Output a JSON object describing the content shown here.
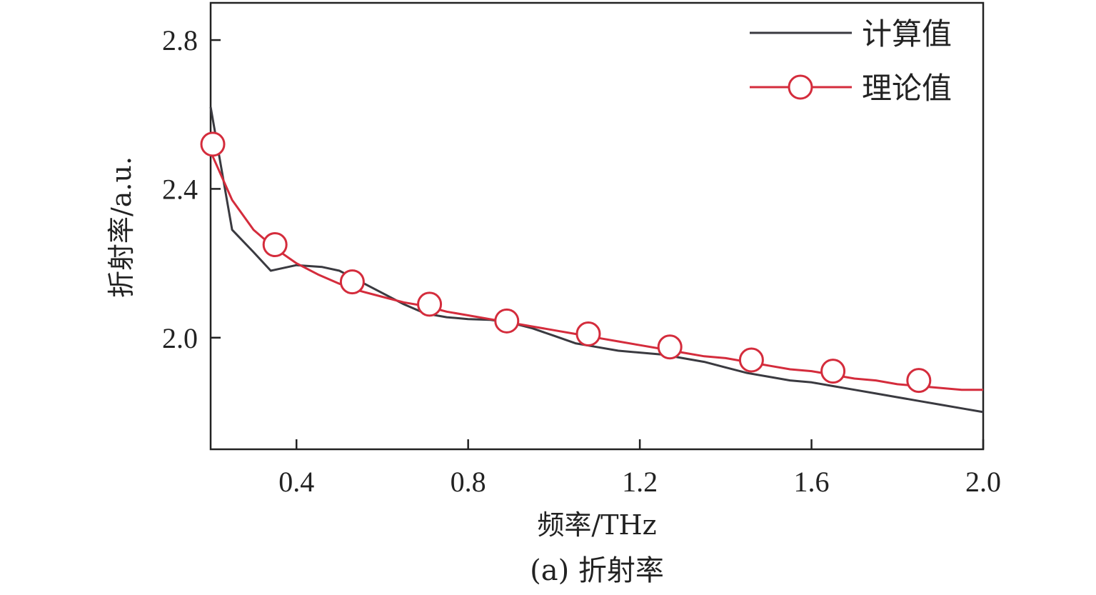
{
  "chart_data": {
    "type": "line",
    "caption": "(a) 折射率",
    "xlabel": "频率/THz",
    "ylabel": "折射率/a.u.",
    "xlim": [
      0.2,
      2.0
    ],
    "ylim": [
      1.7,
      2.9
    ],
    "xticks": [
      0.4,
      0.8,
      1.2,
      1.6,
      2.0
    ],
    "xtick_labels": [
      "0.4",
      "0.8",
      "1.2",
      "1.6",
      "2.0"
    ],
    "yticks": [
      2.0,
      2.4,
      2.8
    ],
    "ytick_labels": [
      "2.0",
      "2.4",
      "2.8"
    ],
    "legend_position": "top-right",
    "grid": false,
    "series": [
      {
        "name": "计算值",
        "color": "#3a3a40",
        "marker": "none",
        "x": [
          0.2,
          0.25,
          0.3,
          0.34,
          0.4,
          0.46,
          0.5,
          0.55,
          0.6,
          0.65,
          0.7,
          0.75,
          0.8,
          0.85,
          0.9,
          0.95,
          1.0,
          1.05,
          1.1,
          1.15,
          1.2,
          1.25,
          1.3,
          1.35,
          1.4,
          1.45,
          1.5,
          1.55,
          1.6,
          1.65,
          1.7,
          1.75,
          1.8,
          1.85,
          1.9,
          1.95,
          2.0
        ],
        "values": [
          2.62,
          2.29,
          2.23,
          2.18,
          2.195,
          2.19,
          2.18,
          2.15,
          2.12,
          2.09,
          2.065,
          2.055,
          2.05,
          2.048,
          2.04,
          2.025,
          2.005,
          1.985,
          1.975,
          1.965,
          1.96,
          1.955,
          1.945,
          1.935,
          1.92,
          1.905,
          1.895,
          1.885,
          1.88,
          1.87,
          1.86,
          1.85,
          1.84,
          1.83,
          1.82,
          1.81,
          1.8
        ]
      },
      {
        "name": "理论值",
        "color": "#d42c3c",
        "marker": "circle",
        "x": [
          0.2,
          0.25,
          0.3,
          0.35,
          0.4,
          0.45,
          0.5,
          0.55,
          0.6,
          0.65,
          0.7,
          0.75,
          0.8,
          0.85,
          0.9,
          0.95,
          1.0,
          1.05,
          1.1,
          1.15,
          1.2,
          1.25,
          1.3,
          1.35,
          1.4,
          1.45,
          1.5,
          1.55,
          1.6,
          1.65,
          1.7,
          1.75,
          1.8,
          1.85,
          1.9,
          1.95,
          2.0
        ],
        "values": [
          2.5,
          2.37,
          2.29,
          2.24,
          2.2,
          2.17,
          2.145,
          2.125,
          2.11,
          2.095,
          2.085,
          2.07,
          2.06,
          2.05,
          2.04,
          2.03,
          2.02,
          2.01,
          2.0,
          1.99,
          1.98,
          1.97,
          1.96,
          1.95,
          1.945,
          1.935,
          1.925,
          1.915,
          1.91,
          1.9,
          1.89,
          1.885,
          1.875,
          1.87,
          1.865,
          1.86,
          1.86
        ],
        "marker_x": [
          0.205,
          0.35,
          0.53,
          0.71,
          0.89,
          1.08,
          1.27,
          1.46,
          1.65,
          1.85
        ],
        "marker_values": [
          2.52,
          2.25,
          2.15,
          2.09,
          2.045,
          2.01,
          1.975,
          1.94,
          1.91,
          1.885
        ]
      }
    ]
  }
}
